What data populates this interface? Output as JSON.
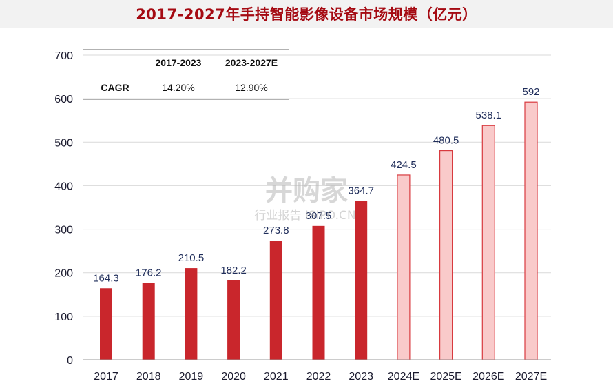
{
  "title": "2017-2027年手持智能影像设备市场规模（亿元）",
  "watermark": {
    "main": "并购家",
    "sub": "行业报告 ISIPO.CN"
  },
  "colors": {
    "actual": "#c9262c",
    "forecast_fill": "#f9caca",
    "forecast_stroke": "#d83a3f",
    "title": "#a50a12"
  },
  "cagr_table": {
    "headers": [
      "",
      "2017-2023",
      "2023-2027E"
    ],
    "row_label": "CAGR",
    "values": [
      "14.20%",
      "12.90%"
    ]
  },
  "chart_data": {
    "type": "bar",
    "title": "2017-2027年手持智能影像设备市场规模（亿元）",
    "xlabel": "",
    "ylabel": "",
    "categories": [
      "2017",
      "2018",
      "2019",
      "2020",
      "2021",
      "2022",
      "2023",
      "2024E",
      "2025E",
      "2026E",
      "2027E"
    ],
    "values": [
      164.3,
      176.2,
      210.5,
      182.2,
      273.8,
      307.5,
      364.7,
      424.5,
      480.5,
      538.1,
      592
    ],
    "labels": [
      "164.3",
      "176.2",
      "210.5",
      "182.2",
      "273.8",
      "307.5",
      "364.7",
      "424.5",
      "480.5",
      "538.1",
      "592"
    ],
    "forecast": [
      false,
      false,
      false,
      false,
      false,
      false,
      false,
      true,
      true,
      true,
      true
    ],
    "ylim": [
      0,
      700
    ],
    "yticks": [
      0,
      100,
      200,
      300,
      400,
      500,
      600,
      700
    ],
    "grid": true,
    "legend": "none"
  }
}
